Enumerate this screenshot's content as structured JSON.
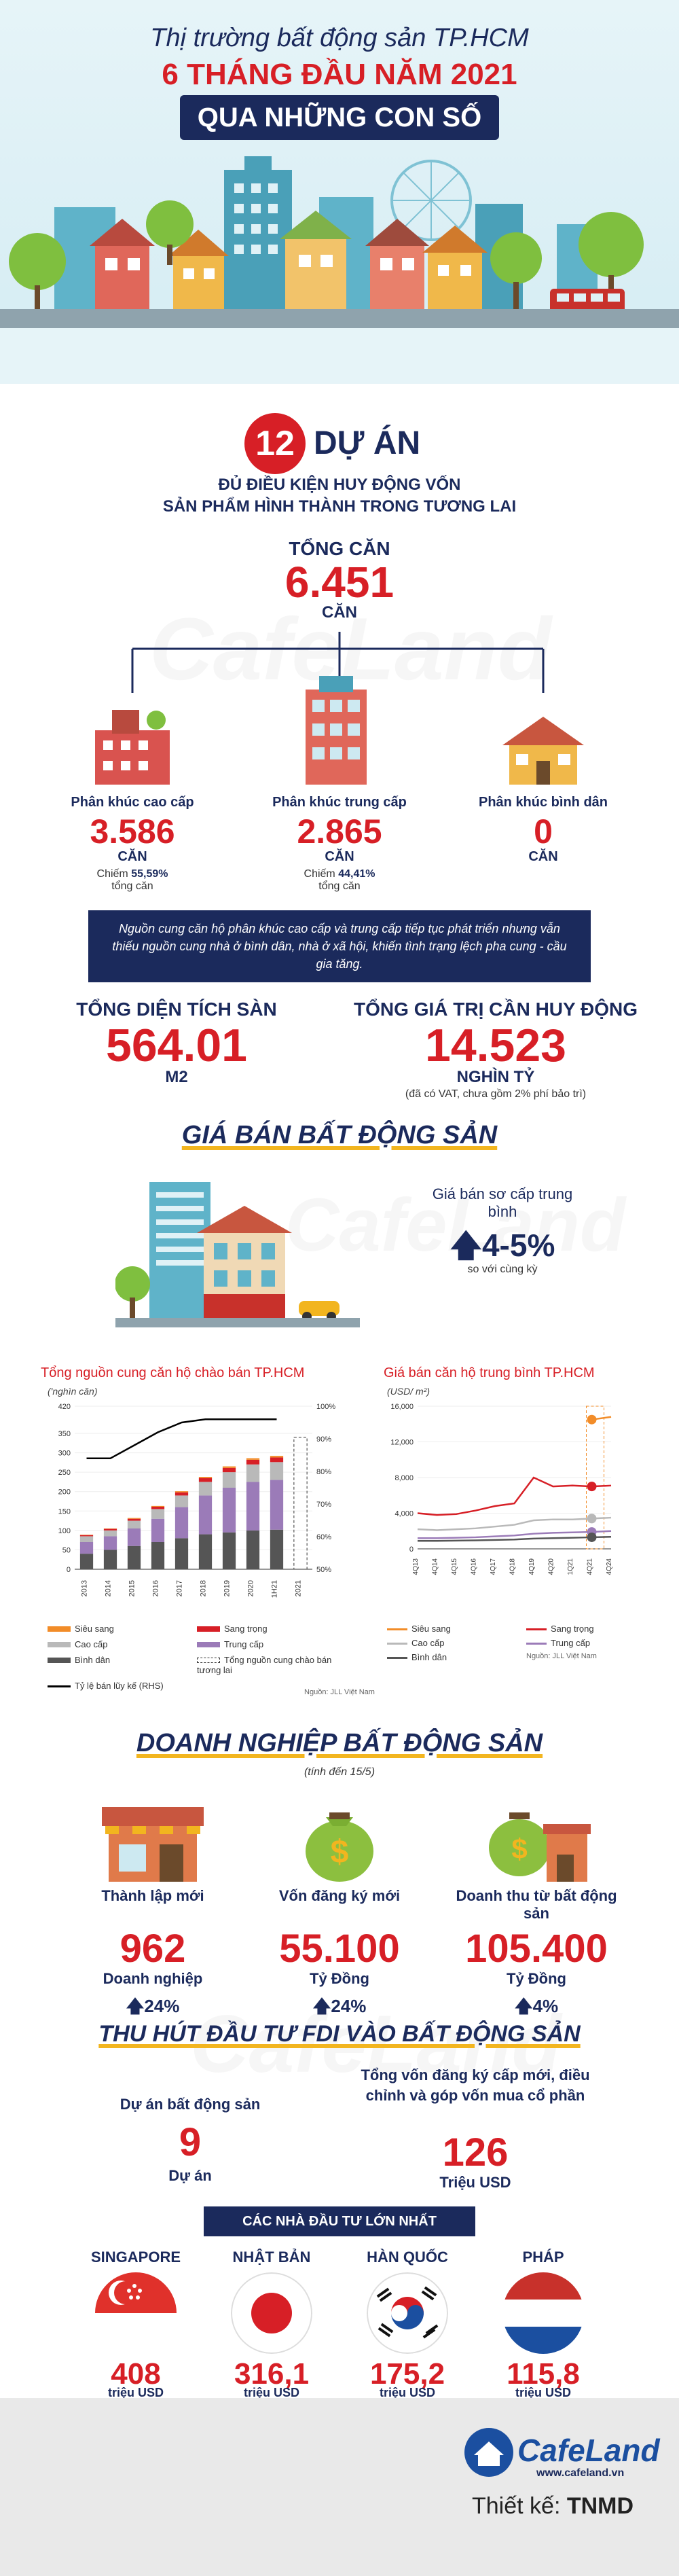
{
  "header": {
    "line1": "Thị trường bất động sản TP.HCM",
    "line2": "6 THÁNG ĐẦU NĂM 2021",
    "line3": "QUA NHỮNG CON SỐ"
  },
  "projects": {
    "count": "12",
    "count_label": "DỰ ÁN",
    "sub1": "ĐỦ ĐIỀU KIỆN HUY ĐỘNG VỐN",
    "sub2": "SẢN PHẨM HÌNH THÀNH TRONG TƯƠNG LAI",
    "total_label": "TỔNG CĂN",
    "total_value": "6.451",
    "total_unit": "CĂN",
    "segments": [
      {
        "name": "Phân khúc cao cấp",
        "value": "3.586",
        "unit": "CĂN",
        "share_prefix": "Chiếm ",
        "share": "55,59%",
        "share_suffix": "tổng căn"
      },
      {
        "name": "Phân khúc trung cấp",
        "value": "2.865",
        "unit": "CĂN",
        "share_prefix": "Chiếm ",
        "share": "44,41%",
        "share_suffix": "tổng căn"
      },
      {
        "name": "Phân khúc bình dân",
        "value": "0",
        "unit": "CĂN",
        "share_prefix": "",
        "share": "",
        "share_suffix": ""
      }
    ],
    "note": "Nguồn cung căn hộ phân khúc cao cấp và trung cấp tiếp tục phát triển nhưng vẫn thiếu nguồn cung nhà ở bình dân, nhà ở xã hội, khiến tình trạng lệch pha cung - cầu gia tăng.",
    "floor_area_label": "TỔNG DIỆN TÍCH SÀN",
    "floor_area_value": "564.01",
    "floor_area_unit": "M2",
    "capital_label": "TỔNG GIÁ TRỊ CẦN HUY ĐỘNG",
    "capital_value": "14.523",
    "capital_unit": "NGHÌN TỶ",
    "capital_note": "(đã có VAT, chưa gồm 2% phí bảo trì)"
  },
  "price": {
    "section_title": "GIÁ BÁN BẤT ĐỘNG SẢN",
    "primary_label": "Giá bán sơ cấp trung bình",
    "primary_change": "4-5%",
    "primary_compare": "so với cùng kỳ",
    "arrow_icon": "arrow-up-icon",
    "chart1": {
      "title": "Tổng nguồn cung căn hộ chào bán TP.HCM",
      "unit": "('nghìn căn)",
      "legend": [
        "Siêu sang",
        "Cao cấp",
        "Bình dân",
        "Tỷ lệ bán lũy kế (RHS)",
        "Sang trọng",
        "Trung cấp",
        "Tổng nguồn cung chào bán tương lai"
      ]
    },
    "chart2": {
      "title": "Giá bán căn hộ trung bình TP.HCM",
      "unit": "(USD/ m²)",
      "legend": [
        "Siêu sang",
        "Cao cấp",
        "Bình dân",
        "Sang trọng",
        "Trung cấp"
      ],
      "source_short": "Nguồn: JLL Việt Nam"
    },
    "source": "Nguồn: JLL Việt Nam"
  },
  "chart_data": [
    {
      "type": "bar",
      "title": "Tổng nguồn cung căn hộ chào bán TP.HCM",
      "ylabel": "('nghìn căn)",
      "categories": [
        "2013",
        "2014",
        "2015",
        "2016",
        "2017",
        "2018",
        "2019",
        "2020",
        "1H21",
        "2021"
      ],
      "ylim": [
        0,
        420
      ],
      "yticks": [
        0,
        50,
        100,
        150,
        200,
        250,
        300,
        350,
        420
      ],
      "y2lim": [
        50,
        100
      ],
      "y2ticks": [
        "50%",
        "60%",
        "70%",
        "80%",
        "90%",
        "100%"
      ],
      "series": [
        {
          "name": "Bình dân",
          "values": [
            40,
            50,
            60,
            70,
            80,
            90,
            95,
            100,
            102,
            0
          ]
        },
        {
          "name": "Trung cấp",
          "values": [
            30,
            35,
            45,
            60,
            80,
            100,
            115,
            125,
            128,
            0
          ]
        },
        {
          "name": "Cao cấp",
          "values": [
            15,
            15,
            20,
            25,
            30,
            35,
            40,
            45,
            46,
            0
          ]
        },
        {
          "name": "Sang trọng",
          "values": [
            3,
            4,
            5,
            6,
            8,
            10,
            11,
            12,
            12,
            0
          ]
        },
        {
          "name": "Siêu sang",
          "values": [
            1,
            1,
            2,
            2,
            3,
            3,
            4,
            4,
            4,
            0
          ]
        },
        {
          "name": "Tỷ lệ bán lũy kế (RHS)",
          "values": [
            84,
            84,
            88,
            92,
            95,
            96,
            96,
            96,
            96,
            null
          ]
        }
      ],
      "future_supply": 340
    },
    {
      "type": "line",
      "title": "Giá bán căn hộ trung bình TP.HCM",
      "ylabel": "(USD/ m²)",
      "categories": [
        "4Q13",
        "4Q14",
        "4Q15",
        "4Q16",
        "4Q17",
        "4Q18",
        "4Q19",
        "4Q20",
        "1Q21",
        "4Q21",
        "4Q24"
      ],
      "ylim": [
        0,
        16000
      ],
      "yticks": [
        "0",
        "4,000",
        "8,000",
        "12,000",
        "16,000"
      ],
      "series": [
        {
          "name": "Siêu sang",
          "values": [
            null,
            null,
            null,
            null,
            null,
            null,
            null,
            null,
            null,
            14500,
            14800
          ]
        },
        {
          "name": "Sang trọng",
          "values": [
            4000,
            3800,
            3900,
            4300,
            4800,
            5100,
            8000,
            7000,
            7100,
            7000,
            7100
          ]
        },
        {
          "name": "Cao cấp",
          "values": [
            2200,
            2100,
            2200,
            2300,
            2500,
            2700,
            3200,
            3300,
            3300,
            3400,
            3500
          ]
        },
        {
          "name": "Trung cấp",
          "values": [
            1200,
            1200,
            1250,
            1300,
            1400,
            1500,
            1700,
            1800,
            1850,
            1900,
            2000
          ]
        },
        {
          "name": "Bình dân",
          "values": [
            900,
            900,
            920,
            950,
            1000,
            1050,
            1150,
            1200,
            1250,
            1300,
            1350
          ]
        }
      ]
    }
  ],
  "enterprise": {
    "section_title": "DOANH NGHIỆP BẤT ĐỘNG SẢN",
    "asof": "(tính đến 15/5)",
    "items": [
      {
        "label": "Thành lập mới",
        "value": "962",
        "unit": "Doanh nghiệp",
        "change": "24%"
      },
      {
        "label": "Vốn đăng ký mới",
        "value": "55.100",
        "unit": "Tỷ Đồng",
        "change": "24%"
      },
      {
        "label": "Doanh thu từ bất động sản",
        "value": "105.400",
        "unit": "Tỷ Đồng",
        "change": "4%"
      }
    ]
  },
  "fdi": {
    "section_title": "THU HÚT ĐẦU TƯ FDI VÀO BẤT ĐỘNG SẢN",
    "projects_label": "Dự án bất động sản",
    "projects_value": "9",
    "projects_unit": "Dự án",
    "capital_label": "Tổng vốn đăng ký cấp mới, điều chỉnh và góp vốn mua cổ phần",
    "capital_value": "126",
    "capital_unit": "Triệu USD",
    "investors_title": "CÁC NHÀ ĐẦU TƯ LỚN NHẤT",
    "investors": [
      {
        "country": "SINGAPORE",
        "value": "408",
        "unit": "triệu USD",
        "flag": "singapore-flag-icon"
      },
      {
        "country": "NHẬT BẢN",
        "value": "316,1",
        "unit": "triệu USD",
        "flag": "japan-flag-icon"
      },
      {
        "country": "HÀN QUỐC",
        "value": "175,2",
        "unit": "triệu USD",
        "flag": "korea-flag-icon"
      },
      {
        "country": "PHÁP",
        "value": "115,8",
        "unit": "triệu USD",
        "flag": "netherlands-flag-icon"
      }
    ]
  },
  "footer": {
    "brand": "CafeLand",
    "url": "www.cafeland.vn",
    "designer_prefix": "Thiết kế: ",
    "designer": "TNMD"
  },
  "watermark": {
    "brand": "CafeLand",
    "url": "www.cafeland.vn"
  },
  "colors": {
    "navy": "#1b2a5c",
    "red": "#d71f26",
    "gold": "#f2b51f"
  }
}
